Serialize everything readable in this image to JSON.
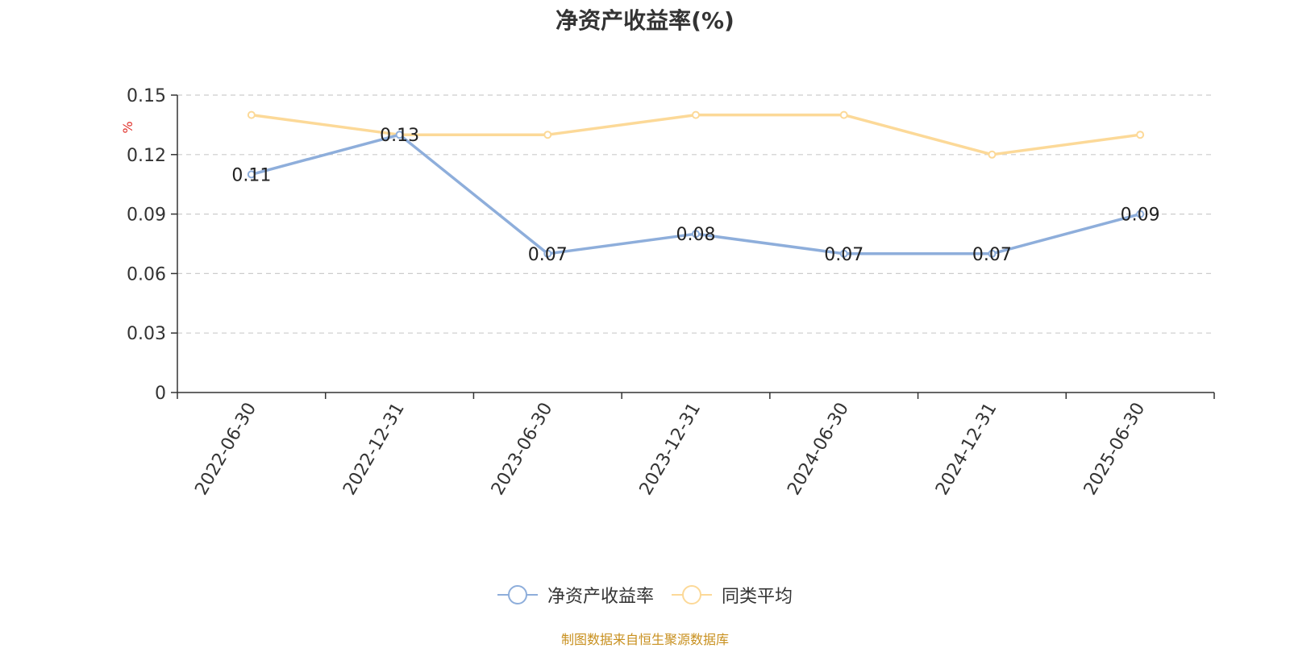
{
  "title": "净资产收益率(%)",
  "source_note": "制图数据来自恒生聚源数据库",
  "chart_data": {
    "type": "line",
    "title": "净资产收益率(%)",
    "ylabel": "%",
    "xlabel": "",
    "categories": [
      "2022-06-30",
      "2022-12-31",
      "2023-06-30",
      "2023-12-31",
      "2024-06-30",
      "2024-12-31",
      "2025-06-30"
    ],
    "y_ticks": [
      "0",
      "0.03",
      "0.06",
      "0.09",
      "0.12",
      "0.15"
    ],
    "ylim": [
      0,
      0.15
    ],
    "grid": true,
    "legend_position": "bottom",
    "series": [
      {
        "name": "净资产收益率",
        "color": "#8eaedb",
        "values": [
          0.11,
          0.13,
          0.07,
          0.08,
          0.07,
          0.07,
          0.09
        ],
        "data_labels": true
      },
      {
        "name": "同类平均",
        "color": "#fcd998",
        "values": [
          0.14,
          0.13,
          0.13,
          0.14,
          0.14,
          0.12,
          0.13
        ],
        "data_labels": false
      }
    ],
    "data_labels": [
      "0.11",
      "0.13",
      "0.07",
      "0.08",
      "0.07",
      "0.07",
      "0.09"
    ]
  },
  "legend": [
    {
      "label": "净资产收益率",
      "color": "#8eaedb"
    },
    {
      "label": "同类平均",
      "color": "#fcd998"
    }
  ]
}
